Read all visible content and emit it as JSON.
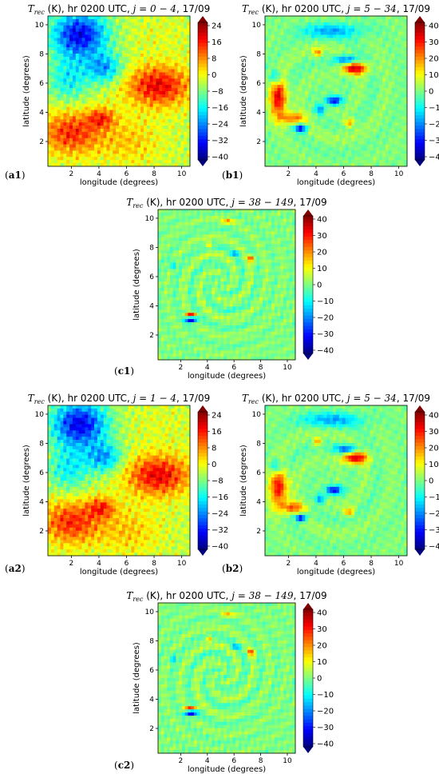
{
  "axis_labels": {
    "x": "longitude (degrees)",
    "y": "latitude (degrees)"
  },
  "chart_data": [
    {
      "type": "heatmap",
      "panel_tag": "a1",
      "tag_letter": "a",
      "tag_num": "1",
      "title_prefix": "T",
      "title_sub": "rec",
      "title_main": " (K), hr 0200 UTC, ",
      "title_j": "j = 0 − 4",
      "title_date": ", 17/09",
      "xlabel": "longitude (degrees)",
      "ylabel": "latitude (degrees)",
      "xticks": [
        "2",
        "4",
        "6",
        "8",
        "10"
      ],
      "yticks": [
        "2",
        "4",
        "6",
        "8",
        "10"
      ],
      "xlim": [
        0.3,
        10.6
      ],
      "ylim": [
        0.3,
        10.6
      ],
      "colorbar": {
        "ticks": [
          "24",
          "16",
          "8",
          "0",
          "−8",
          "−16",
          "−24",
          "−32",
          "−40"
        ],
        "min": -44,
        "max": 30
      },
      "pattern": "lowpass"
    },
    {
      "type": "heatmap",
      "panel_tag": "b1",
      "tag_letter": "b",
      "tag_num": "1",
      "title_prefix": "T",
      "title_sub": "rec",
      "title_main": " (K), hr 0200 UTC, ",
      "title_j": "j = 5 − 34",
      "title_date": ", 17/09",
      "xlabel": "longitude (degrees)",
      "ylabel": "latitude (degrees)",
      "xticks": [
        "2",
        "4",
        "6",
        "8",
        "10"
      ],
      "yticks": [
        "2",
        "4",
        "6",
        "8",
        "10"
      ],
      "xlim": [
        0.3,
        10.6
      ],
      "ylim": [
        0.3,
        10.6
      ],
      "colorbar": {
        "ticks": [
          "40",
          "30",
          "20",
          "10",
          "0",
          "−10",
          "−20",
          "−30",
          "−40"
        ],
        "min": -40,
        "max": 40
      },
      "pattern": "midband"
    },
    {
      "type": "heatmap",
      "panel_tag": "c1",
      "tag_letter": "c",
      "tag_num": "1",
      "title_prefix": "T",
      "title_sub": "rec",
      "title_main": " (K), hr 0200 UTC, ",
      "title_j": "j = 38 − 149",
      "title_date": ", 17/09",
      "xlabel": "longitude (degrees)",
      "ylabel": "latitude (degrees)",
      "xticks": [
        "2",
        "4",
        "6",
        "8",
        "10"
      ],
      "yticks": [
        "2",
        "4",
        "6",
        "8",
        "10"
      ],
      "xlim": [
        0.3,
        10.6
      ],
      "ylim": [
        0.3,
        10.6
      ],
      "colorbar": {
        "ticks": [
          "40",
          "30",
          "20",
          "10",
          "0",
          "−10",
          "−20",
          "−30",
          "−40"
        ],
        "min": -40,
        "max": 40
      },
      "pattern": "highband"
    },
    {
      "type": "heatmap",
      "panel_tag": "a2",
      "tag_letter": "a",
      "tag_num": "2",
      "title_prefix": "T",
      "title_sub": "rec",
      "title_main": " (K), hr 0200 UTC, ",
      "title_j": "j = 1 − 4",
      "title_date": ", 17/09",
      "xlabel": "longitude (degrees)",
      "ylabel": "latitude (degrees)",
      "xticks": [
        "2",
        "4",
        "6",
        "8",
        "10"
      ],
      "yticks": [
        "2",
        "4",
        "6",
        "8",
        "10"
      ],
      "xlim": [
        0.3,
        10.6
      ],
      "ylim": [
        0.3,
        10.6
      ],
      "colorbar": {
        "ticks": [
          "24",
          "16",
          "8",
          "0",
          "−8",
          "−16",
          "−24",
          "−32",
          "−40"
        ],
        "min": -44,
        "max": 30
      },
      "pattern": "lowpass"
    },
    {
      "type": "heatmap",
      "panel_tag": "b2",
      "tag_letter": "b",
      "tag_num": "2",
      "title_prefix": "T",
      "title_sub": "rec",
      "title_main": " (K), hr 0200 UTC, ",
      "title_j": "j = 5 − 34",
      "title_date": ", 17/09",
      "xlabel": "longitude (degrees)",
      "ylabel": "latitude (degrees)",
      "xticks": [
        "2",
        "4",
        "6",
        "8",
        "10"
      ],
      "yticks": [
        "2",
        "4",
        "6",
        "8",
        "10"
      ],
      "xlim": [
        0.3,
        10.6
      ],
      "ylim": [
        0.3,
        10.6
      ],
      "colorbar": {
        "ticks": [
          "40",
          "30",
          "20",
          "10",
          "0",
          "−10",
          "−20",
          "−30",
          "−40"
        ],
        "min": -40,
        "max": 40
      },
      "pattern": "midband"
    },
    {
      "type": "heatmap",
      "panel_tag": "c2",
      "tag_letter": "c",
      "tag_num": "2",
      "title_prefix": "T",
      "title_sub": "rec",
      "title_main": " (K), hr 0200 UTC, ",
      "title_j": "j = 38 − 149",
      "title_date": ", 17/09",
      "xlabel": "longitude (degrees)",
      "ylabel": "latitude (degrees)",
      "xticks": [
        "2",
        "4",
        "6",
        "8",
        "10"
      ],
      "yticks": [
        "2",
        "4",
        "6",
        "8",
        "10"
      ],
      "xlim": [
        0.3,
        10.6
      ],
      "ylim": [
        0.3,
        10.6
      ],
      "colorbar": {
        "ticks": [
          "40",
          "30",
          "20",
          "10",
          "0",
          "−10",
          "−20",
          "−30",
          "−40"
        ],
        "min": -40,
        "max": 40
      },
      "pattern": "highband"
    }
  ]
}
